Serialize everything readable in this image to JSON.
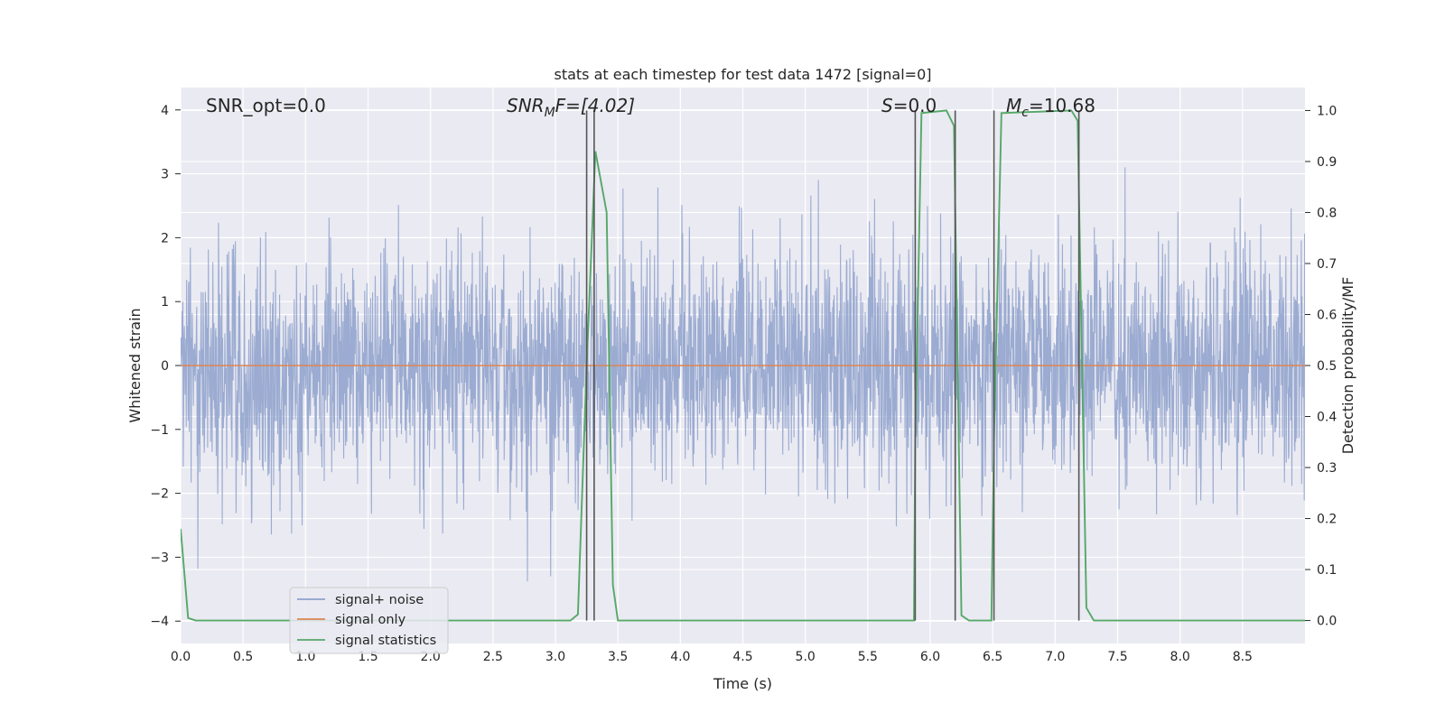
{
  "chart_data": {
    "type": "line",
    "title": "stats at each timestep for test data 1472 [signal=0]",
    "xlabel": "Time (s)",
    "ylabel": "Whitened strain",
    "ylabel_right": "Detection probability/MF",
    "xlim": [
      0.0,
      9.0
    ],
    "ylim": [
      -4.35,
      4.35
    ],
    "ylim_right": [
      -0.045,
      1.045
    ],
    "x_ticks": [
      "0.0",
      "0.5",
      "1.0",
      "1.5",
      "2.0",
      "2.5",
      "3.0",
      "3.5",
      "4.0",
      "4.5",
      "5.0",
      "5.5",
      "6.0",
      "6.5",
      "7.0",
      "7.5",
      "8.0",
      "8.5"
    ],
    "y_ticks": [
      "4",
      "3",
      "2",
      "1",
      "0",
      "−1",
      "−2",
      "−3",
      "−4"
    ],
    "y_ticks_right": [
      "1.0",
      "0.9",
      "0.8",
      "0.7",
      "0.6",
      "0.5",
      "0.4",
      "0.3",
      "0.2",
      "0.1",
      "0.0"
    ],
    "grid": true,
    "legend_position": "lower-left",
    "annotations": {
      "snr_opt": "SNR_opt=0.0",
      "snr_mf_base": "SNR",
      "snr_mf_sub": "M",
      "snr_mf_rest": "F=[4.02]",
      "s_var": "S",
      "s_rest": "=0.0",
      "mc_base": "M",
      "mc_sub": "c",
      "mc_rest": "=10.68"
    },
    "series": [
      {
        "name": "signal+ noise",
        "color": "#8da0cb",
        "description_kind": "noise",
        "y_range_typical": [
          -1.7,
          1.7
        ],
        "y_peak_max": 3.42,
        "y_peak_min": -3.65
      },
      {
        "name": "signal only",
        "color": "#dd8452",
        "x": [
          0.0,
          9.0
        ],
        "y": [
          0.0,
          0.0
        ]
      },
      {
        "name": "signal statistics",
        "color": "#55a868",
        "axis": "right",
        "x": [
          0.0,
          0.06,
          0.12,
          3.12,
          3.18,
          3.25,
          3.32,
          3.41,
          3.46,
          3.5,
          5.87,
          5.88,
          5.93,
          6.13,
          6.19,
          6.25,
          6.31,
          6.49,
          6.51,
          6.57,
          7.13,
          7.18,
          7.25,
          7.31,
          9.0
        ],
        "y": [
          0.18,
          0.005,
          0.0,
          0.0,
          0.012,
          0.5,
          0.92,
          0.8,
          0.07,
          0.0,
          0.0,
          0.35,
          0.995,
          1.0,
          0.97,
          0.01,
          0.0,
          0.0,
          0.35,
          0.995,
          1.0,
          0.98,
          0.025,
          0.0,
          0.0
        ]
      }
    ],
    "vertical_markers": {
      "color": "#555555",
      "x": [
        3.25,
        3.31,
        5.88,
        6.2,
        6.51,
        7.19
      ]
    }
  }
}
